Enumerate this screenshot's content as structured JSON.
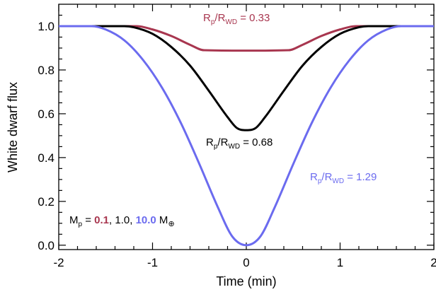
{
  "chart_data": {
    "type": "line",
    "xlabel": "Time (min)",
    "ylabel": "White dwarf flux",
    "xlim": [
      -2,
      2
    ],
    "ylim": [
      -0.02,
      1.1
    ],
    "xticks": [
      -2,
      -1,
      0,
      1,
      2
    ],
    "xtick_labels": [
      "-2",
      "-1",
      "0",
      "1",
      "2"
    ],
    "yticks": [
      0.0,
      0.2,
      0.4,
      0.6,
      0.8,
      1.0
    ],
    "ytick_labels": [
      "0.0",
      "0.2",
      "0.4",
      "0.6",
      "0.8",
      "1.0"
    ],
    "grid": false,
    "series": [
      {
        "color": "#a8364f",
        "x": [
          -2.0,
          -1.17,
          -1.0,
          -0.8,
          -0.6,
          -0.45,
          0.0,
          0.45,
          0.6,
          0.8,
          1.0,
          1.17,
          2.0
        ],
        "y": [
          1.0,
          1.0,
          0.985,
          0.955,
          0.915,
          0.89,
          0.888,
          0.89,
          0.915,
          0.955,
          0.985,
          1.0,
          1.0
        ]
      },
      {
        "color": "#000000",
        "x": [
          -2.0,
          -1.3,
          -1.2,
          -1.0,
          -0.8,
          -0.6,
          -0.4,
          -0.2,
          -0.1,
          0.0,
          0.1,
          0.2,
          0.4,
          0.6,
          0.8,
          1.0,
          1.2,
          1.3,
          2.0
        ],
        "y": [
          1.0,
          1.0,
          0.995,
          0.965,
          0.905,
          0.82,
          0.705,
          0.585,
          0.535,
          0.525,
          0.535,
          0.585,
          0.705,
          0.82,
          0.905,
          0.965,
          0.995,
          1.0,
          1.0
        ],
        "label_text": {
          "p1": "R",
          "s1": "p",
          "p2": "/R",
          "s2": "WD",
          "p3": " = 0.68"
        }
      },
      {
        "color": "#6b6bef",
        "x": [
          -2.0,
          -1.65,
          -1.5,
          -1.3,
          -1.1,
          -0.9,
          -0.7,
          -0.5,
          -0.3,
          -0.15,
          0.0,
          0.15,
          0.3,
          0.5,
          0.7,
          0.9,
          1.1,
          1.3,
          1.5,
          1.65,
          2.0
        ],
        "y": [
          1.0,
          1.0,
          0.985,
          0.935,
          0.845,
          0.72,
          0.56,
          0.37,
          0.17,
          0.04,
          0.0,
          0.04,
          0.17,
          0.37,
          0.56,
          0.72,
          0.845,
          0.935,
          0.985,
          1.0,
          1.0
        ]
      }
    ],
    "annotations": [
      {
        "color": "#a8364f",
        "p1": "R",
        "s1": "p",
        "p2": "/R",
        "s2": "WD",
        "p3": " = 0.33"
      },
      {
        "color": "#6b6bef",
        "p1": "R",
        "s1": "p",
        "p2": "/R",
        "s2": "WD",
        "p3": " = 1.29"
      }
    ],
    "mass_note": {
      "prefix": "M",
      "prefix_sub": "p",
      "eq": " = ",
      "v1": "0.1",
      "sep1": ", 1.0, ",
      "v3": "10.0",
      "suffix": " M",
      "suffix_sym": "⊕"
    }
  }
}
